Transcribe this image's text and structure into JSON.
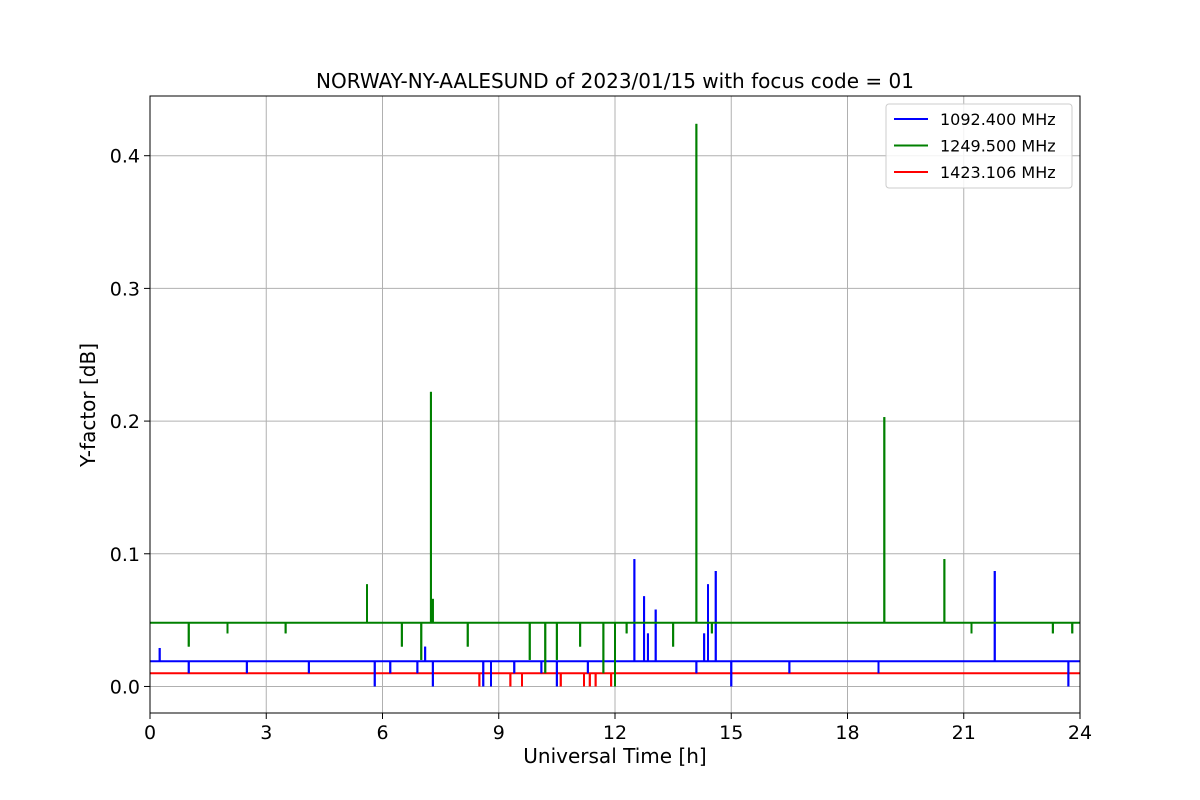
{
  "chart_data": {
    "type": "line",
    "title": "NORWAY-NY-AALESUND of 2023/01/15 with focus code = 01",
    "xlabel": "Universal Time [h]",
    "ylabel": "Y-factor [dB]",
    "xlim": [
      0,
      24
    ],
    "ylim": [
      -0.02,
      0.445
    ],
    "xticks": [
      0,
      3,
      6,
      9,
      12,
      15,
      18,
      21,
      24
    ],
    "xtick_labels": [
      "0",
      "3",
      "6",
      "9",
      "12",
      "15",
      "18",
      "21",
      "24"
    ],
    "yticks": [
      0.0,
      0.1,
      0.2,
      0.3,
      0.4
    ],
    "ytick_labels": [
      "0.0",
      "0.1",
      "0.2",
      "0.3",
      "0.4"
    ],
    "grid": true,
    "legend_position": "upper-right",
    "series": [
      {
        "name": "1092.400 MHz",
        "color": "#0000ff",
        "baseline": 0.019,
        "spikes": [
          [
            0.25,
            0.029
          ],
          [
            1.0,
            0.01
          ],
          [
            2.5,
            0.01
          ],
          [
            4.1,
            0.01
          ],
          [
            5.8,
            0.0
          ],
          [
            6.2,
            0.01
          ],
          [
            6.9,
            0.01
          ],
          [
            7.1,
            0.03
          ],
          [
            7.3,
            0.0
          ],
          [
            8.6,
            0.0
          ],
          [
            8.8,
            0.0
          ],
          [
            9.4,
            0.01
          ],
          [
            10.1,
            0.01
          ],
          [
            10.5,
            0.0
          ],
          [
            11.3,
            0.01
          ],
          [
            12.5,
            0.096
          ],
          [
            12.75,
            0.068
          ],
          [
            12.85,
            0.04
          ],
          [
            13.05,
            0.058
          ],
          [
            14.1,
            0.01
          ],
          [
            14.3,
            0.04
          ],
          [
            14.4,
            0.077
          ],
          [
            14.6,
            0.087
          ],
          [
            15.0,
            0.0
          ],
          [
            16.5,
            0.01
          ],
          [
            18.8,
            0.01
          ],
          [
            21.8,
            0.087
          ],
          [
            23.7,
            0.0
          ]
        ]
      },
      {
        "name": "1249.500 MHz",
        "color": "#008000",
        "baseline": 0.048,
        "spikes": [
          [
            1.0,
            0.03
          ],
          [
            2.0,
            0.04
          ],
          [
            3.5,
            0.04
          ],
          [
            5.6,
            0.077
          ],
          [
            6.5,
            0.03
          ],
          [
            7.0,
            0.02
          ],
          [
            7.25,
            0.222
          ],
          [
            7.3,
            0.066
          ],
          [
            8.2,
            0.03
          ],
          [
            9.8,
            0.02
          ],
          [
            10.2,
            0.01
          ],
          [
            10.5,
            0.02
          ],
          [
            11.1,
            0.03
          ],
          [
            11.7,
            0.01
          ],
          [
            12.0,
            0.0
          ],
          [
            12.3,
            0.04
          ],
          [
            13.5,
            0.03
          ],
          [
            14.1,
            0.424
          ],
          [
            14.5,
            0.04
          ],
          [
            18.95,
            0.203
          ],
          [
            20.5,
            0.096
          ],
          [
            21.2,
            0.04
          ],
          [
            23.3,
            0.04
          ],
          [
            23.8,
            0.04
          ]
        ]
      },
      {
        "name": "1423.106 MHz",
        "color": "#ff0000",
        "baseline": 0.01,
        "spikes": [
          [
            8.5,
            0.0
          ],
          [
            9.3,
            0.0
          ],
          [
            9.6,
            0.0
          ],
          [
            10.6,
            0.0
          ],
          [
            11.2,
            0.0
          ],
          [
            11.35,
            0.0
          ],
          [
            11.5,
            0.0
          ],
          [
            11.9,
            0.0
          ]
        ]
      }
    ]
  }
}
